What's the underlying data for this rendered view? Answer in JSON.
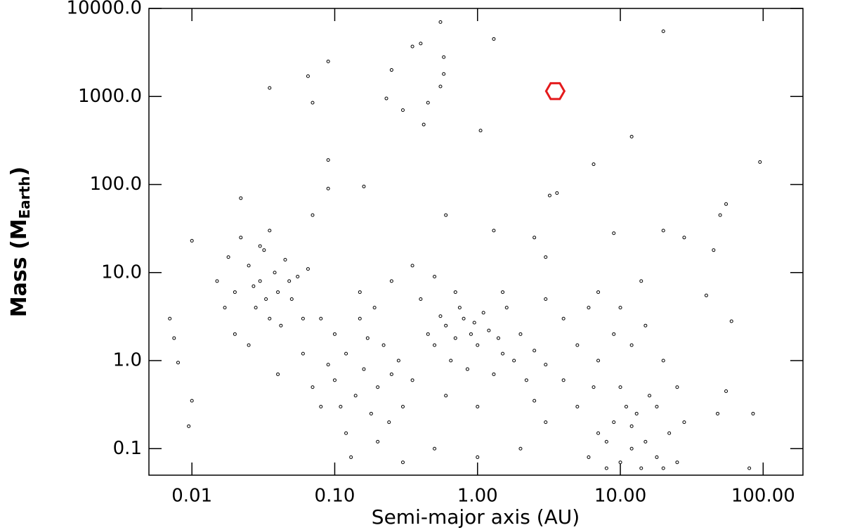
{
  "chart_data": {
    "type": "scatter",
    "xlabel": "Semi-major axis (AU)",
    "ylabel": [
      "Mass (M",
      "Earth",
      ")"
    ],
    "xlog": true,
    "ylog": true,
    "xlim": [
      0.005,
      190
    ],
    "ylim": [
      0.05,
      10000
    ],
    "xticks": [
      {
        "value": 0.01,
        "label": "0.01"
      },
      {
        "value": 0.1,
        "label": "0.10"
      },
      {
        "value": 1,
        "label": "1.00"
      },
      {
        "value": 10,
        "label": "10.00"
      },
      {
        "value": 100,
        "label": "100.00"
      }
    ],
    "yticks": [
      {
        "value": 0.1,
        "label": "0.1"
      },
      {
        "value": 1,
        "label": "1.0"
      },
      {
        "value": 10,
        "label": "10.0"
      },
      {
        "value": 100,
        "label": "100.0"
      },
      {
        "value": 1000,
        "label": "1000.0"
      },
      {
        "value": 10000,
        "label": "10000.0"
      }
    ],
    "series": [
      {
        "color": "#000000",
        "marker": "circle",
        "x": [
          0.55,
          0.35,
          0.4,
          0.25,
          0.09,
          0.065,
          0.035,
          0.07,
          0.58,
          0.58,
          0.55,
          0.23,
          0.3,
          0.45,
          0.42,
          1.3,
          1.05,
          20,
          12,
          6.5,
          0.09,
          0.09,
          0.16,
          0.022,
          0.6,
          3.2,
          3.6,
          95,
          0.07,
          1.3,
          2.5,
          3,
          9,
          20,
          28,
          45,
          55,
          50,
          40,
          60,
          55,
          48,
          85,
          80,
          0.007,
          0.01,
          0.0075,
          0.008,
          0.01,
          0.0095,
          0.015,
          0.018,
          0.02,
          0.022,
          0.025,
          0.028,
          0.03,
          0.032,
          0.035,
          0.038,
          0.04,
          0.045,
          0.05,
          0.055,
          0.02,
          0.025,
          0.03,
          0.035,
          0.042,
          0.06,
          0.017,
          0.027,
          0.033,
          0.048,
          0.065,
          0.08,
          0.1,
          0.12,
          0.14,
          0.16,
          0.18,
          0.2,
          0.22,
          0.25,
          0.12,
          0.1,
          0.15,
          0.3,
          0.09,
          0.2,
          0.13,
          0.17,
          0.28,
          0.35,
          0.07,
          0.11,
          0.24,
          0.19,
          0.06,
          0.04,
          0.5,
          0.6,
          0.7,
          0.8,
          0.9,
          1,
          1.2,
          1.5,
          0.75,
          0.65,
          0.85,
          1.1,
          1.4,
          0.55,
          0.95,
          1.8,
          2,
          0.45,
          1.3,
          0.7,
          2.5,
          3,
          0.4,
          1.6,
          2.2,
          6,
          8,
          10,
          12,
          14,
          9,
          11,
          7,
          15,
          18,
          20,
          13,
          5,
          16,
          10,
          8,
          12,
          22,
          25,
          6.5,
          4,
          5,
          7,
          9,
          12,
          15,
          20,
          25,
          3,
          2,
          1,
          0.5,
          0.3,
          0.6,
          4,
          6,
          10,
          1.5,
          3,
          0.25,
          0.15,
          0.08,
          18,
          28,
          2.5,
          1,
          0.35,
          0.5,
          7,
          14
        ],
        "values": [
          7000,
          3700,
          4000,
          2000,
          2500,
          1700,
          1250,
          850,
          2800,
          1800,
          1300,
          950,
          700,
          850,
          480,
          4500,
          410,
          5500,
          350,
          170,
          190,
          90,
          95,
          70,
          45,
          75,
          80,
          180,
          45,
          30,
          25,
          15,
          28,
          30,
          25,
          18,
          60,
          45,
          5.5,
          2.8,
          0.45,
          0.25,
          0.25,
          0.06,
          3,
          23,
          1.8,
          0.95,
          0.35,
          0.18,
          8,
          15,
          6,
          25,
          12,
          4,
          8,
          18,
          3,
          10,
          6,
          14,
          5,
          9,
          2,
          1.5,
          20,
          30,
          2.5,
          3,
          4,
          7,
          5,
          8,
          11,
          0.3,
          0.6,
          1.2,
          0.4,
          0.8,
          0.25,
          0.5,
          1.5,
          0.7,
          0.15,
          2,
          3,
          0.3,
          0.9,
          0.12,
          0.08,
          1.8,
          1,
          0.6,
          0.5,
          0.3,
          0.2,
          4,
          1.2,
          0.7,
          1.5,
          2.5,
          1.8,
          3,
          2,
          1.5,
          2.2,
          1.2,
          4,
          1,
          0.8,
          3.5,
          1.8,
          3.2,
          2.7,
          1,
          2,
          2,
          0.7,
          6,
          1.3,
          0.9,
          5,
          4,
          0.6,
          0.08,
          0.12,
          0.07,
          0.1,
          0.06,
          0.2,
          0.3,
          0.15,
          0.12,
          0.08,
          0.06,
          0.25,
          0.3,
          0.4,
          0.5,
          0.06,
          0.18,
          0.15,
          0.07,
          0.5,
          0.6,
          1.5,
          1,
          2,
          1.5,
          2.5,
          1,
          0.5,
          0.2,
          0.1,
          0.3,
          0.1,
          0.07,
          0.4,
          3,
          4,
          4,
          6,
          5,
          8,
          6,
          3,
          0.3,
          0.2,
          0.35,
          0.08,
          12,
          9,
          6,
          8
        ]
      },
      {
        "color": "#e41a1c",
        "marker": "hexagon",
        "x": [
          3.5
        ],
        "values": [
          1150
        ]
      }
    ]
  }
}
